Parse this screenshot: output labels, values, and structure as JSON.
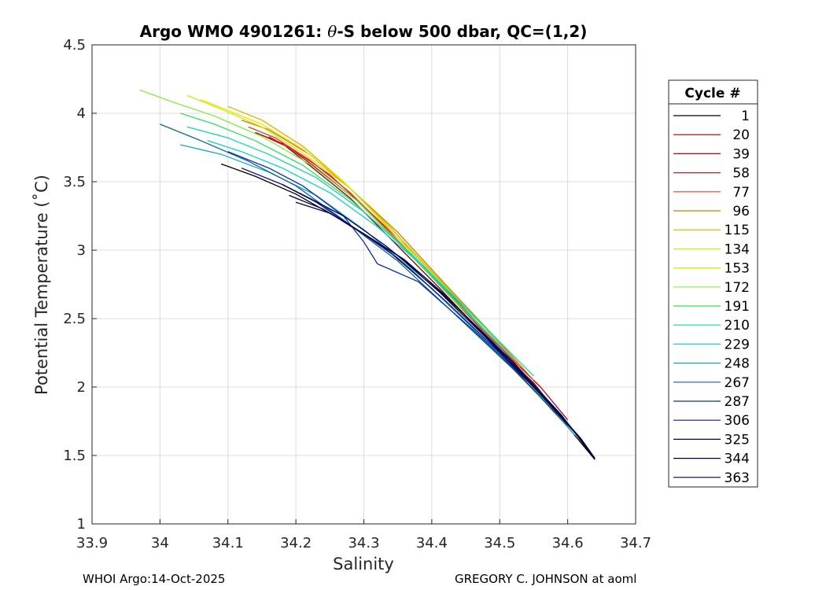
{
  "chart_data": {
    "type": "line",
    "title_prefix": "Argo WMO 4901261: ",
    "title_theta": "θ",
    "title_suffix": "-S below 500 dbar,  QC=(1,2)",
    "xlabel": "Salinity",
    "ylabel": "Potential Temperature (˚C)",
    "xlim": [
      33.9,
      34.7
    ],
    "ylim": [
      1,
      4.5
    ],
    "xticks": [
      33.9,
      34,
      34.1,
      34.2,
      34.3,
      34.4,
      34.5,
      34.6,
      34.7
    ],
    "xtick_labels": [
      "33.9",
      "34",
      "34.1",
      "34.2",
      "34.3",
      "34.4",
      "34.5",
      "34.6",
      "34.7"
    ],
    "yticks": [
      1,
      1.5,
      2,
      2.5,
      3,
      3.5,
      4,
      4.5
    ],
    "ytick_labels": [
      "1",
      "1.5",
      "2",
      "2.5",
      "3",
      "3.5",
      "4",
      "4.5"
    ],
    "grid": true,
    "legend": {
      "title": "Cycle #",
      "placement": "right-outside",
      "entries": [
        "1",
        "20",
        "39",
        "58",
        "77",
        "96",
        "115",
        "134",
        "153",
        "172",
        "191",
        "210",
        "229",
        "248",
        "267",
        "287",
        "306",
        "325",
        "344",
        "363"
      ],
      "colors": [
        "#000000",
        "#8b0000",
        "#c00000",
        "#d81818",
        "#e04020",
        "#c88000",
        "#d8b000",
        "#f0e000",
        "#c8f000",
        "#80f040",
        "#30e060",
        "#10d8a0",
        "#10d0d0",
        "#10a8c8",
        "#0a6890",
        "#0a30b0",
        "#101890",
        "#000060",
        "#000030",
        "#000050"
      ]
    },
    "series": [
      {
        "name": "1",
        "color": "#000000",
        "points": [
          [
            34.09,
            3.63
          ],
          [
            34.14,
            3.54
          ],
          [
            34.2,
            3.41
          ],
          [
            34.26,
            3.24
          ],
          [
            34.33,
            3.02
          ],
          [
            34.4,
            2.72
          ],
          [
            34.48,
            2.34
          ],
          [
            34.55,
            1.98
          ],
          [
            34.6,
            1.71
          ],
          [
            34.64,
            1.47
          ]
        ]
      },
      {
        "name": "20",
        "color": "#8b0000",
        "points": [
          [
            34.14,
            3.86
          ],
          [
            34.18,
            3.78
          ],
          [
            34.22,
            3.62
          ],
          [
            34.28,
            3.38
          ],
          [
            34.34,
            3.08
          ],
          [
            34.41,
            2.73
          ],
          [
            34.48,
            2.36
          ],
          [
            34.55,
            2.03
          ],
          [
            34.59,
            1.78
          ]
        ]
      },
      {
        "name": "39",
        "color": "#c00000",
        "points": [
          [
            34.15,
            3.84
          ],
          [
            34.19,
            3.75
          ],
          [
            34.23,
            3.6
          ],
          [
            34.29,
            3.36
          ],
          [
            34.35,
            3.06
          ],
          [
            34.42,
            2.71
          ],
          [
            34.49,
            2.34
          ],
          [
            34.56,
            2.0
          ],
          [
            34.6,
            1.76
          ]
        ]
      },
      {
        "name": "58",
        "color": "#d81818",
        "points": [
          [
            34.16,
            3.83
          ],
          [
            34.2,
            3.72
          ],
          [
            34.25,
            3.55
          ],
          [
            34.3,
            3.32
          ],
          [
            34.36,
            3.04
          ],
          [
            34.42,
            2.72
          ],
          [
            34.49,
            2.35
          ],
          [
            34.55,
            2.02
          ],
          [
            34.59,
            1.77
          ]
        ]
      },
      {
        "name": "77",
        "color": "#e04020",
        "points": [
          [
            34.13,
            3.9
          ],
          [
            34.17,
            3.82
          ],
          [
            34.22,
            3.66
          ],
          [
            34.28,
            3.42
          ],
          [
            34.34,
            3.12
          ],
          [
            34.41,
            2.76
          ],
          [
            34.48,
            2.38
          ],
          [
            34.54,
            2.06
          ]
        ]
      },
      {
        "name": "96",
        "color": "#c88000",
        "points": [
          [
            34.12,
            3.95
          ],
          [
            34.16,
            3.88
          ],
          [
            34.22,
            3.7
          ],
          [
            34.28,
            3.45
          ],
          [
            34.35,
            3.13
          ],
          [
            34.42,
            2.75
          ],
          [
            34.49,
            2.38
          ],
          [
            34.55,
            2.05
          ]
        ]
      },
      {
        "name": "115",
        "color": "#d8b000",
        "points": [
          [
            34.1,
            4.05
          ],
          [
            34.15,
            3.95
          ],
          [
            34.21,
            3.76
          ],
          [
            34.27,
            3.5
          ],
          [
            34.34,
            3.16
          ],
          [
            34.41,
            2.79
          ],
          [
            34.48,
            2.42
          ],
          [
            34.53,
            2.15
          ]
        ]
      },
      {
        "name": "134",
        "color": "#f0e000",
        "points": [
          [
            34.06,
            4.1
          ],
          [
            34.1,
            4.02
          ],
          [
            34.15,
            3.92
          ],
          [
            34.21,
            3.74
          ],
          [
            34.27,
            3.5
          ],
          [
            34.33,
            3.2
          ],
          [
            34.39,
            2.86
          ],
          [
            34.45,
            2.53
          ]
        ]
      },
      {
        "name": "153",
        "color": "#c8f000",
        "points": [
          [
            34.04,
            4.13
          ],
          [
            34.09,
            4.03
          ],
          [
            34.15,
            3.9
          ],
          [
            34.21,
            3.71
          ],
          [
            34.28,
            3.45
          ],
          [
            34.34,
            3.14
          ],
          [
            34.41,
            2.78
          ],
          [
            34.48,
            2.42
          ]
        ]
      },
      {
        "name": "172",
        "color": "#80f040",
        "points": [
          [
            33.97,
            4.17
          ],
          [
            34.02,
            4.08
          ],
          [
            34.08,
            3.98
          ],
          [
            34.15,
            3.83
          ],
          [
            34.22,
            3.63
          ],
          [
            34.29,
            3.36
          ],
          [
            34.35,
            3.06
          ],
          [
            34.42,
            2.72
          ]
        ]
      },
      {
        "name": "191",
        "color": "#30e060",
        "points": [
          [
            34.03,
            4.0
          ],
          [
            34.08,
            3.92
          ],
          [
            34.14,
            3.8
          ],
          [
            34.21,
            3.62
          ],
          [
            34.28,
            3.37
          ],
          [
            34.35,
            3.06
          ],
          [
            34.42,
            2.7
          ],
          [
            34.5,
            2.3
          ]
        ]
      },
      {
        "name": "210",
        "color": "#10d8a0",
        "points": [
          [
            34.04,
            3.9
          ],
          [
            34.1,
            3.82
          ],
          [
            34.16,
            3.7
          ],
          [
            34.23,
            3.53
          ],
          [
            34.3,
            3.28
          ],
          [
            34.37,
            2.97
          ],
          [
            34.44,
            2.61
          ],
          [
            34.52,
            2.2
          ]
        ]
      },
      {
        "name": "229",
        "color": "#10d0d0",
        "points": [
          [
            34.07,
            3.8
          ],
          [
            34.12,
            3.72
          ],
          [
            34.18,
            3.6
          ],
          [
            34.25,
            3.42
          ],
          [
            34.32,
            3.17
          ],
          [
            34.39,
            2.87
          ],
          [
            34.47,
            2.48
          ],
          [
            34.55,
            2.08
          ]
        ]
      },
      {
        "name": "248",
        "color": "#10a8c8",
        "points": [
          [
            34.03,
            3.77
          ],
          [
            34.09,
            3.7
          ],
          [
            34.16,
            3.57
          ],
          [
            34.23,
            3.4
          ],
          [
            34.3,
            3.15
          ],
          [
            34.37,
            2.86
          ],
          [
            34.45,
            2.48
          ],
          [
            34.54,
            2.05
          ],
          [
            34.61,
            1.65
          ]
        ]
      },
      {
        "name": "267",
        "color": "#0a6890",
        "points": [
          [
            34.0,
            3.92
          ],
          [
            34.06,
            3.8
          ],
          [
            34.13,
            3.65
          ],
          [
            34.2,
            3.47
          ],
          [
            34.27,
            3.22
          ],
          [
            34.35,
            2.92
          ],
          [
            34.43,
            2.55
          ],
          [
            34.52,
            2.13
          ],
          [
            34.6,
            1.72
          ]
        ]
      },
      {
        "name": "287",
        "color": "#0a30b0",
        "points": [
          [
            34.1,
            3.72
          ],
          [
            34.16,
            3.6
          ],
          [
            34.21,
            3.47
          ],
          [
            34.27,
            3.25
          ],
          [
            34.3,
            3.06
          ],
          [
            34.32,
            2.9
          ],
          [
            34.38,
            2.77
          ],
          [
            34.46,
            2.42
          ],
          [
            34.55,
            2.0
          ],
          [
            34.62,
            1.62
          ]
        ]
      },
      {
        "name": "306",
        "color": "#101890",
        "points": [
          [
            34.12,
            3.6
          ],
          [
            34.18,
            3.48
          ],
          [
            34.23,
            3.35
          ],
          [
            34.29,
            3.15
          ],
          [
            34.35,
            2.94
          ],
          [
            34.42,
            2.63
          ],
          [
            34.5,
            2.25
          ],
          [
            34.58,
            1.85
          ],
          [
            34.63,
            1.55
          ]
        ]
      },
      {
        "name": "325",
        "color": "#000060",
        "points": [
          [
            34.18,
            3.48
          ],
          [
            34.22,
            3.38
          ],
          [
            34.27,
            3.25
          ],
          [
            34.33,
            3.04
          ],
          [
            34.39,
            2.8
          ],
          [
            34.45,
            2.52
          ],
          [
            34.52,
            2.18
          ],
          [
            34.59,
            1.8
          ],
          [
            34.64,
            1.48
          ]
        ]
      },
      {
        "name": "344",
        "color": "#000030",
        "points": [
          [
            34.19,
            3.4
          ],
          [
            34.24,
            3.3
          ],
          [
            34.29,
            3.15
          ],
          [
            34.35,
            2.96
          ],
          [
            34.41,
            2.7
          ],
          [
            34.48,
            2.36
          ],
          [
            34.55,
            2.0
          ],
          [
            34.61,
            1.67
          ],
          [
            34.64,
            1.47
          ]
        ]
      },
      {
        "name": "363",
        "color": "#000050",
        "points": [
          [
            34.2,
            3.35
          ],
          [
            34.25,
            3.27
          ],
          [
            34.3,
            3.12
          ],
          [
            34.36,
            2.93
          ],
          [
            34.42,
            2.67
          ],
          [
            34.49,
            2.32
          ],
          [
            34.56,
            1.96
          ],
          [
            34.62,
            1.62
          ],
          [
            34.64,
            1.48
          ]
        ]
      }
    ]
  },
  "footer": {
    "left": "WHOI Argo:14-Oct-2025",
    "right": "GREGORY C. JOHNSON at aoml"
  }
}
